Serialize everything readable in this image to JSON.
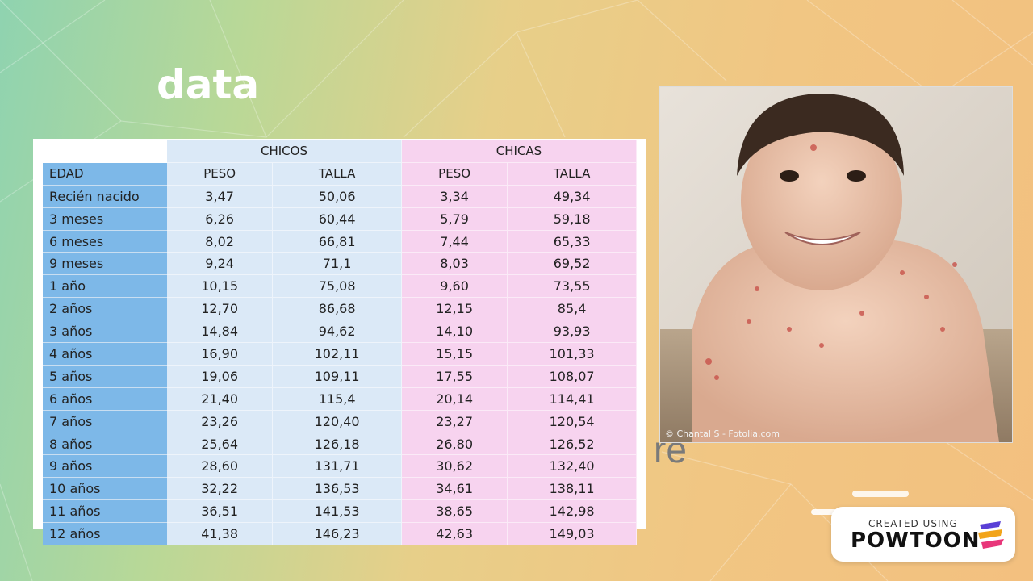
{
  "slide": {
    "title": "data",
    "stray_text": "re"
  },
  "table": {
    "group_headers": [
      "CHICOS",
      "CHICAS"
    ],
    "column_headers": [
      "EDAD",
      "PESO",
      "TALLA",
      "PESO",
      "TALLA"
    ],
    "rows": [
      [
        "Recién nacido",
        "3,47",
        "50,06",
        "3,34",
        "49,34"
      ],
      [
        "3 meses",
        "6,26",
        "60,44",
        "5,79",
        "59,18"
      ],
      [
        "6 meses",
        "8,02",
        "66,81",
        "7,44",
        "65,33"
      ],
      [
        "9 meses",
        "9,24",
        "71,1",
        "8,03",
        "69,52"
      ],
      [
        "1 año",
        "10,15",
        "75,08",
        "9,60",
        "73,55"
      ],
      [
        "2 años",
        "12,70",
        "86,68",
        "12,15",
        "85,4"
      ],
      [
        "3 años",
        "14,84",
        "94,62",
        "14,10",
        "93,93"
      ],
      [
        "4 años",
        "16,90",
        "102,11",
        "15,15",
        "101,33"
      ],
      [
        "5 años",
        "19,06",
        "109,11",
        "17,55",
        "108,07"
      ],
      [
        "6 años",
        "21,40",
        "115,4",
        "20,14",
        "114,41"
      ],
      [
        "7 años",
        "23,26",
        "120,40",
        "23,27",
        "120,54"
      ],
      [
        "8 años",
        "25,64",
        "126,18",
        "26,80",
        "126,52"
      ],
      [
        "9 años",
        "28,60",
        "131,71",
        "30,62",
        "132,40"
      ],
      [
        "10 años",
        "32,22",
        "136,53",
        "34,61",
        "138,11"
      ],
      [
        "11 años",
        "36,51",
        "141,53",
        "38,65",
        "142,98"
      ],
      [
        "12 años",
        "41,38",
        "146,23",
        "42,63",
        "149,03"
      ]
    ]
  },
  "photo": {
    "credit": "© Chantal S - Fotolia.com"
  },
  "badge": {
    "created_using": "CREATED USING",
    "brand": "POWTOON"
  },
  "colors": {
    "age_col": "#7db8e8",
    "boys": "#dbe9f7",
    "girls": "#f7d3ef"
  }
}
